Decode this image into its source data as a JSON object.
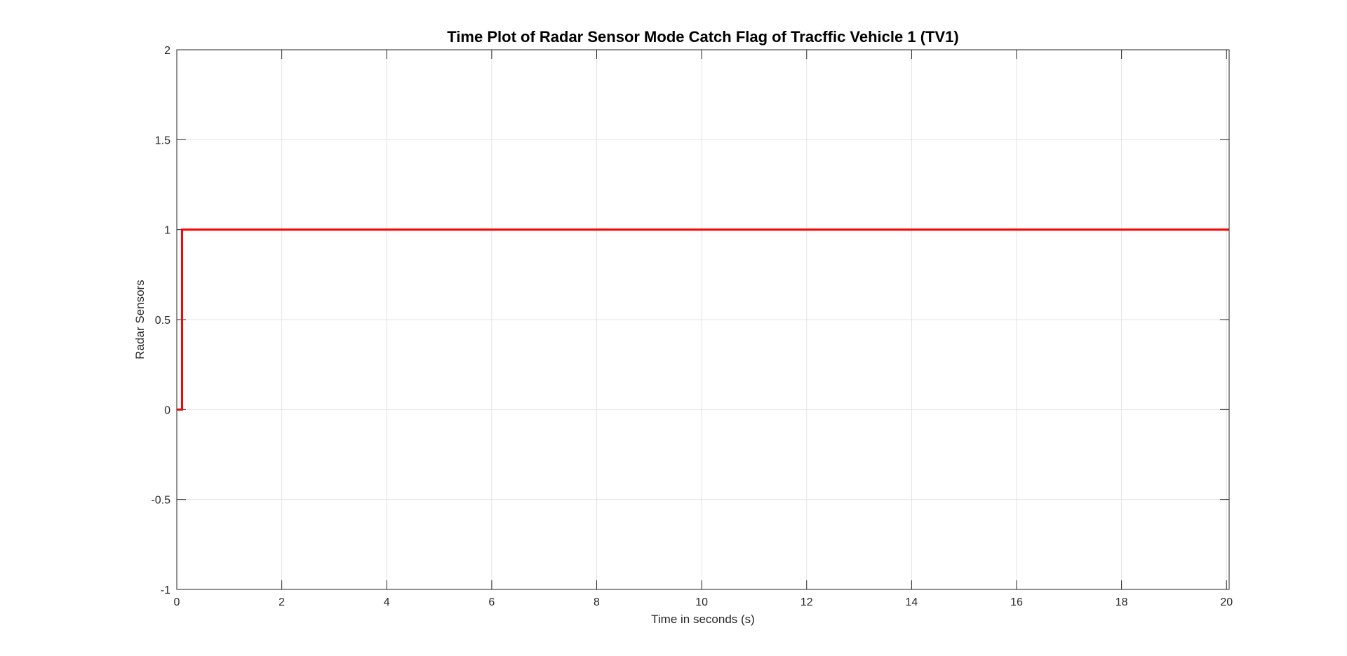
{
  "chart_data": {
    "type": "line",
    "title": "Time Plot of Radar Sensor Mode Catch Flag of Tracffic Vehicle 1 (TV1)",
    "xlabel": "Time in seconds (s)",
    "ylabel": "Radar Sensors",
    "xlim": [
      0,
      20.05
    ],
    "ylim": [
      -1,
      2
    ],
    "xticks": [
      0,
      2,
      4,
      6,
      8,
      10,
      12,
      14,
      16,
      18,
      20
    ],
    "xtick_labels": [
      "0",
      "2",
      "4",
      "6",
      "8",
      "10",
      "12",
      "14",
      "16",
      "18",
      "20"
    ],
    "yticks": [
      -1,
      -0.5,
      0,
      0.5,
      1,
      1.5,
      2
    ],
    "ytick_labels": [
      "-1",
      "-0.5",
      "0",
      "0.5",
      "1",
      "1.5",
      "2"
    ],
    "grid": true,
    "series": [
      {
        "color": "#ff0000",
        "step": true,
        "x": [
          0,
          0.1,
          0.1,
          20.05
        ],
        "y": [
          0,
          0,
          1,
          1
        ]
      }
    ]
  }
}
